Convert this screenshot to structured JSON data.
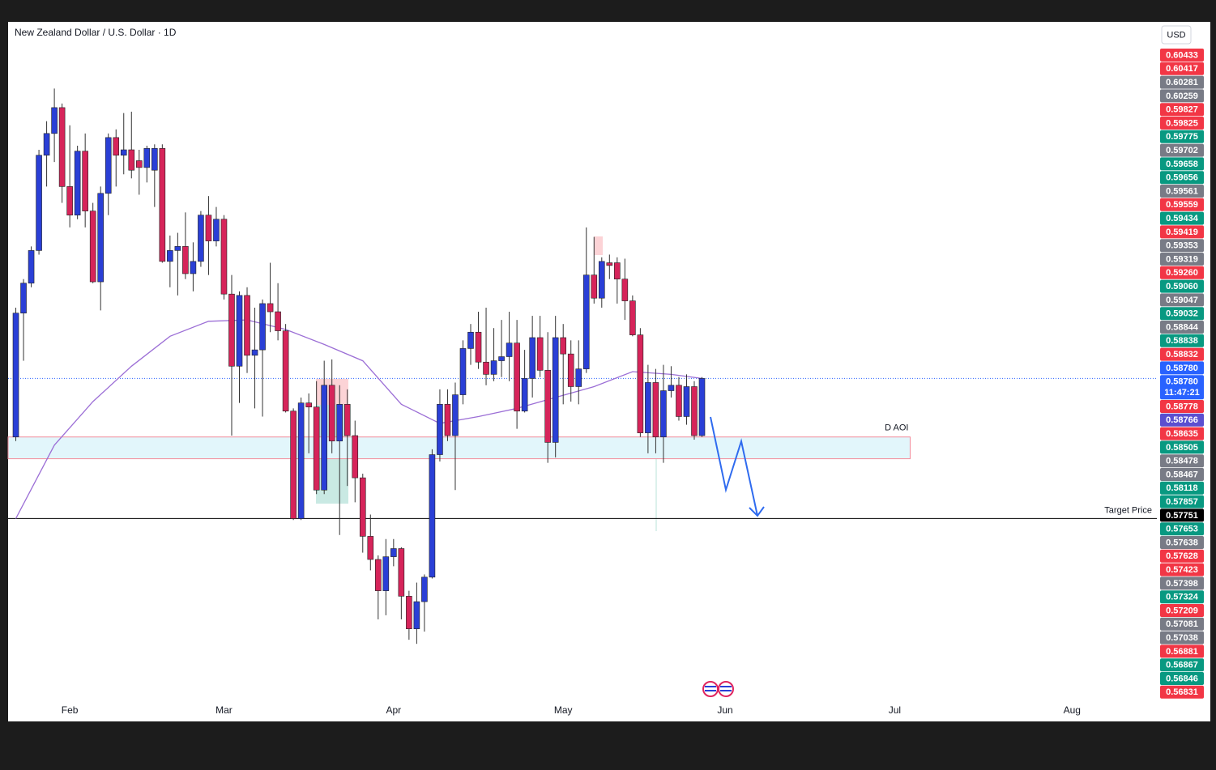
{
  "chart_data": {
    "type": "candlestick",
    "title": "New Zealand Dollar / U.S. Dollar · 1D",
    "currency": "USD",
    "xlim": [
      -1,
      148
    ],
    "ylim": [
      0.5626,
      0.614
    ],
    "xticks": [
      {
        "value": 7,
        "label": "Feb"
      },
      {
        "value": 27,
        "label": "Mar"
      },
      {
        "value": 49,
        "label": "Apr"
      },
      {
        "value": 71,
        "label": "May"
      },
      {
        "value": 92,
        "label": "Jun"
      },
      {
        "value": 114,
        "label": "Jul"
      },
      {
        "value": 137,
        "label": "Aug"
      }
    ],
    "up_color": "#2a3fd6",
    "down_color": "#d6245a",
    "wick_color": "#333333",
    "open": [
      0.5835,
      0.5926,
      0.5948,
      0.5972,
      0.6042,
      0.6058,
      0.6077,
      0.6019,
      0.5998,
      0.6045,
      0.6001,
      0.5949,
      0.6014,
      0.6055,
      0.6042,
      0.6046,
      0.6038,
      0.6033,
      0.6031,
      0.6047,
      0.5964,
      0.5972,
      0.5975,
      0.5955,
      0.5964,
      0.5998,
      0.5979,
      0.5995,
      0.594,
      0.5887,
      0.5939,
      0.5895,
      0.5899,
      0.5933,
      0.5927,
      0.5913,
      0.5854,
      0.5775,
      0.586,
      0.5857,
      0.5796,
      0.5873,
      0.5832,
      0.5859,
      0.5836,
      0.5805,
      0.5762,
      0.5745,
      0.5722,
      0.5747,
      0.5753,
      0.5718,
      0.5694,
      0.5714,
      0.5732,
      0.5822,
      0.5859,
      0.5836,
      0.5866,
      0.59,
      0.5912,
      0.589,
      0.5881,
      0.5891,
      0.5894,
      0.5904,
      0.5854,
      0.5878,
      0.5908,
      0.5884,
      0.5831,
      0.5908,
      0.5896,
      0.5872,
      0.5885,
      0.5954,
      0.5937,
      0.5963,
      0.5963,
      0.5951,
      0.5935,
      0.591,
      0.5838,
      0.5875,
      0.5835,
      0.5869,
      0.5873,
      0.585,
      0.5872,
      0.5836
    ],
    "high": [
      0.593,
      0.5951,
      0.5975,
      0.6046,
      0.6067,
      0.6091,
      0.608,
      0.6064,
      0.6049,
      0.6058,
      0.6007,
      0.6019,
      0.6058,
      0.6061,
      0.6073,
      0.6074,
      0.6046,
      0.6049,
      0.605,
      0.605,
      0.5983,
      0.5985,
      0.6,
      0.5978,
      0.6001,
      0.6012,
      0.6004,
      0.5998,
      0.5954,
      0.5942,
      0.5945,
      0.593,
      0.5936,
      0.5963,
      0.5948,
      0.5918,
      0.5856,
      0.5864,
      0.5867,
      0.5876,
      0.5891,
      0.5892,
      0.5873,
      0.587,
      0.5847,
      0.5808,
      0.5778,
      0.5748,
      0.576,
      0.576,
      0.5754,
      0.5722,
      0.5728,
      0.5734,
      0.5826,
      0.587,
      0.587,
      0.5875,
      0.5906,
      0.5918,
      0.5927,
      0.593,
      0.5915,
      0.5921,
      0.5927,
      0.5921,
      0.5899,
      0.5924,
      0.5924,
      0.5912,
      0.5924,
      0.5918,
      0.5906,
      0.5906,
      0.5989,
      0.5982,
      0.5967,
      0.5969,
      0.5967,
      0.5966,
      0.5939,
      0.5915,
      0.5888,
      0.5885,
      0.5888,
      0.5887,
      0.5879,
      0.5881,
      0.5876,
      0.5879
    ],
    "low": [
      0.5832,
      0.5891,
      0.5945,
      0.5969,
      0.6019,
      0.6037,
      0.6007,
      0.5989,
      0.5995,
      0.5989,
      0.5948,
      0.5928,
      0.5998,
      0.6019,
      0.6028,
      0.6025,
      0.6013,
      0.6022,
      0.6004,
      0.5963,
      0.5945,
      0.5939,
      0.5951,
      0.5942,
      0.596,
      0.5954,
      0.5975,
      0.5936,
      0.5836,
      0.586,
      0.5882,
      0.5856,
      0.585,
      0.5912,
      0.5906,
      0.5853,
      0.5774,
      0.5774,
      0.5823,
      0.5793,
      0.5793,
      0.5823,
      0.5763,
      0.5799,
      0.5787,
      0.575,
      0.5737,
      0.5701,
      0.5704,
      0.574,
      0.5701,
      0.5686,
      0.5683,
      0.5692,
      0.5731,
      0.5817,
      0.5832,
      0.5796,
      0.5859,
      0.5888,
      0.5885,
      0.5873,
      0.5876,
      0.5879,
      0.5876,
      0.5841,
      0.5853,
      0.5864,
      0.5879,
      0.5816,
      0.582,
      0.5859,
      0.5861,
      0.5859,
      0.5882,
      0.5933,
      0.593,
      0.5951,
      0.5933,
      0.5921,
      0.5909,
      0.5835,
      0.5823,
      0.5823,
      0.5816,
      0.5864,
      0.5847,
      0.5844,
      0.5833,
      0.5835
    ],
    "close": [
      0.5926,
      0.5948,
      0.5972,
      0.6042,
      0.6058,
      0.6077,
      0.6019,
      0.5998,
      0.6045,
      0.6001,
      0.5949,
      0.6014,
      0.6055,
      0.6042,
      0.6046,
      0.6031,
      0.6033,
      0.6047,
      0.6047,
      0.5964,
      0.5972,
      0.5975,
      0.5955,
      0.5964,
      0.5998,
      0.5979,
      0.5995,
      0.594,
      0.5887,
      0.5939,
      0.5895,
      0.5899,
      0.5933,
      0.5927,
      0.5913,
      0.5854,
      0.5775,
      0.586,
      0.5857,
      0.5796,
      0.5873,
      0.5832,
      0.5859,
      0.5836,
      0.5805,
      0.5762,
      0.5745,
      0.5722,
      0.5747,
      0.5753,
      0.5718,
      0.5694,
      0.5714,
      0.5732,
      0.5822,
      0.5859,
      0.5836,
      0.5866,
      0.59,
      0.5912,
      0.589,
      0.5881,
      0.5891,
      0.5894,
      0.5904,
      0.5854,
      0.5878,
      0.5908,
      0.5884,
      0.5831,
      0.5908,
      0.5896,
      0.5872,
      0.5885,
      0.5954,
      0.5937,
      0.5964,
      0.5961,
      0.5951,
      0.5935,
      0.591,
      0.5838,
      0.5875,
      0.5835,
      0.5869,
      0.5873,
      0.585,
      0.5872,
      0.5836,
      0.5878
    ],
    "ma": {
      "color": "#9c6fd6",
      "x": [
        0,
        5,
        10,
        15,
        20,
        25,
        30,
        35,
        40,
        45,
        50,
        55,
        60,
        65,
        70,
        75,
        80,
        85,
        89
      ],
      "values": [
        0.5775,
        0.5829,
        0.5861,
        0.5887,
        0.5909,
        0.592,
        0.5921,
        0.5914,
        0.5903,
        0.5891,
        0.5859,
        0.5845,
        0.585,
        0.5856,
        0.5864,
        0.5872,
        0.5883,
        0.5881,
        0.5878
      ]
    },
    "zone": {
      "label": "D AOI",
      "top": 0.5835,
      "bottom": 0.5819,
      "x_end": 116,
      "fill": "#e2f6fb",
      "stroke": "#f28b9a"
    },
    "target": {
      "label": "Target Price",
      "value": 0.57751
    },
    "last_price": 0.5878,
    "price_tags": [
      {
        "label": "0.60433",
        "color": "#f23645"
      },
      {
        "label": "0.60417",
        "color": "#f23645"
      },
      {
        "label": "0.60281",
        "color": "#787b86"
      },
      {
        "label": "0.60259",
        "color": "#787b86"
      },
      {
        "label": "0.59827",
        "color": "#f23645"
      },
      {
        "label": "0.59825",
        "color": "#f23645"
      },
      {
        "label": "0.59775",
        "color": "#089981"
      },
      {
        "label": "0.59702",
        "color": "#787b86"
      },
      {
        "label": "0.59658",
        "color": "#089981"
      },
      {
        "label": "0.59656",
        "color": "#089981"
      },
      {
        "label": "0.59561",
        "color": "#787b86"
      },
      {
        "label": "0.59559",
        "color": "#f23645"
      },
      {
        "label": "0.59434",
        "color": "#089981"
      },
      {
        "label": "0.59419",
        "color": "#f23645"
      },
      {
        "label": "0.59353",
        "color": "#787b86"
      },
      {
        "label": "0.59319",
        "color": "#787b86"
      },
      {
        "label": "0.59260",
        "color": "#f23645"
      },
      {
        "label": "0.59060",
        "color": "#089981"
      },
      {
        "label": "0.59047",
        "color": "#787b86"
      },
      {
        "label": "0.59032",
        "color": "#089981"
      },
      {
        "label": "0.58844",
        "color": "#787b86"
      },
      {
        "label": "0.58838",
        "color": "#089981"
      },
      {
        "label": "0.58832",
        "color": "#f23645"
      },
      {
        "label": "0.58780",
        "color": "#2962ff"
      },
      {
        "label": "0.58780",
        "color": "#2962ff",
        "time": "11:47:21"
      },
      {
        "label": "0.58778",
        "color": "#f23645"
      },
      {
        "label": "0.58766",
        "color": "#5b4fd0"
      },
      {
        "label": "0.58635",
        "color": "#f23645"
      },
      {
        "label": "0.58505",
        "color": "#089981"
      },
      {
        "label": "0.58478",
        "color": "#787b86"
      },
      {
        "label": "0.58467",
        "color": "#787b86"
      },
      {
        "label": "0.58118",
        "color": "#089981"
      },
      {
        "label": "0.57857",
        "color": "#089981"
      },
      {
        "label": "0.57751",
        "color": "#000000"
      },
      {
        "label": "0.57653",
        "color": "#089981"
      },
      {
        "label": "0.57638",
        "color": "#787b86"
      },
      {
        "label": "0.57628",
        "color": "#f23645"
      },
      {
        "label": "0.57423",
        "color": "#f23645"
      },
      {
        "label": "0.57398",
        "color": "#787b86"
      },
      {
        "label": "0.57324",
        "color": "#089981"
      },
      {
        "label": "0.57209",
        "color": "#f23645"
      },
      {
        "label": "0.57081",
        "color": "#787b86"
      },
      {
        "label": "0.57038",
        "color": "#787b86"
      },
      {
        "label": "0.56881",
        "color": "#f23645"
      },
      {
        "label": "0.56867",
        "color": "#089981"
      },
      {
        "label": "0.56846",
        "color": "#089981"
      },
      {
        "label": "0.56831",
        "color": "#f23645"
      }
    ]
  }
}
